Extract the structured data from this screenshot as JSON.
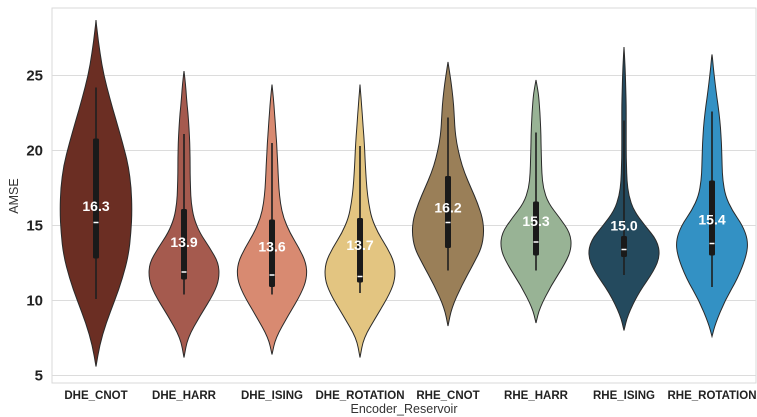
{
  "chart_data": {
    "type": "violin",
    "title": "",
    "xlabel": "Encoder_Reservoir",
    "ylabel": "AMSE",
    "ylim": [
      4.5,
      29.5
    ],
    "yticks": [
      5,
      10,
      15,
      20,
      25
    ],
    "grid": true,
    "categories": [
      "DHE_CNOT",
      "DHE_HARR",
      "DHE_ISING",
      "DHE_ROTATION",
      "RHE_CNOT",
      "RHE_HARR",
      "RHE_ISING",
      "RHE_ROTATION"
    ],
    "means": [
      "16.3",
      "13.9",
      "13.6",
      "13.7",
      "16.2",
      "15.3",
      "15.0",
      "15.4"
    ],
    "colors": [
      "#6b2e23",
      "#a55a4e",
      "#d88a71",
      "#e3c581",
      "#9a7f58",
      "#98b395",
      "#244a5e",
      "#3391c4"
    ],
    "violins": [
      {
        "name": "DHE_CNOT",
        "top": 28.7,
        "bottom": 5.6,
        "whisker": [
          10.1,
          24.2
        ],
        "q1": 12.8,
        "median": 15.2,
        "q3": 20.8,
        "profile": [
          [
            5.6,
            0
          ],
          [
            7,
            0.1
          ],
          [
            8.5,
            0.28
          ],
          [
            10,
            0.52
          ],
          [
            11.5,
            0.74
          ],
          [
            13,
            0.9
          ],
          [
            14.5,
            0.97
          ],
          [
            16,
            1.0
          ],
          [
            17.5,
            0.98
          ],
          [
            19,
            0.9
          ],
          [
            20.5,
            0.74
          ],
          [
            22,
            0.56
          ],
          [
            23.5,
            0.38
          ],
          [
            25,
            0.22
          ],
          [
            26.5,
            0.11
          ],
          [
            28,
            0.03
          ],
          [
            28.7,
            0
          ]
        ]
      },
      {
        "name": "DHE_HARR",
        "top": 25.3,
        "bottom": 6.2,
        "whisker": [
          10.4,
          21.1
        ],
        "q1": 11.4,
        "median": 11.9,
        "q3": 16.1,
        "profile": [
          [
            6.2,
            0
          ],
          [
            7.5,
            0.1
          ],
          [
            9,
            0.45
          ],
          [
            10.5,
            0.84
          ],
          [
            11.5,
            0.98
          ],
          [
            12.5,
            0.96
          ],
          [
            13.5,
            0.72
          ],
          [
            14.5,
            0.44
          ],
          [
            15.5,
            0.27
          ],
          [
            16.5,
            0.2
          ],
          [
            17.5,
            0.18
          ],
          [
            18.5,
            0.17
          ],
          [
            19.5,
            0.17
          ],
          [
            20.5,
            0.16
          ],
          [
            21.5,
            0.14
          ],
          [
            22.5,
            0.11
          ],
          [
            23.5,
            0.07
          ],
          [
            24.5,
            0.04
          ],
          [
            25.3,
            0
          ]
        ]
      },
      {
        "name": "DHE_ISING",
        "top": 24.4,
        "bottom": 6.4,
        "whisker": [
          10.4,
          20.5
        ],
        "q1": 10.9,
        "median": 11.7,
        "q3": 15.4,
        "profile": [
          [
            6.4,
            0
          ],
          [
            7.5,
            0.1
          ],
          [
            9,
            0.45
          ],
          [
            10.5,
            0.82
          ],
          [
            11.5,
            0.97
          ],
          [
            12.5,
            0.95
          ],
          [
            13.5,
            0.75
          ],
          [
            14.5,
            0.5
          ],
          [
            15.5,
            0.32
          ],
          [
            16.5,
            0.23
          ],
          [
            17.5,
            0.19
          ],
          [
            18.5,
            0.17
          ],
          [
            19.5,
            0.15
          ],
          [
            20.5,
            0.13
          ],
          [
            21.5,
            0.1
          ],
          [
            22.5,
            0.07
          ],
          [
            23.5,
            0.04
          ],
          [
            24.4,
            0
          ]
        ]
      },
      {
        "name": "DHE_ROTATION",
        "top": 24.4,
        "bottom": 6.2,
        "whisker": [
          10.5,
          20.3
        ],
        "q1": 11.2,
        "median": 11.6,
        "q3": 15.5,
        "profile": [
          [
            6.2,
            0
          ],
          [
            7.5,
            0.1
          ],
          [
            9,
            0.47
          ],
          [
            10.5,
            0.84
          ],
          [
            11.5,
            0.98
          ],
          [
            12.5,
            0.96
          ],
          [
            13.5,
            0.76
          ],
          [
            14.5,
            0.5
          ],
          [
            15.5,
            0.32
          ],
          [
            16.5,
            0.24
          ],
          [
            17.5,
            0.19
          ],
          [
            18.5,
            0.16
          ],
          [
            19.5,
            0.14
          ],
          [
            20.5,
            0.12
          ],
          [
            21.5,
            0.09
          ],
          [
            22.5,
            0.06
          ],
          [
            23.5,
            0.03
          ],
          [
            24.4,
            0
          ]
        ]
      },
      {
        "name": "RHE_CNOT",
        "top": 25.9,
        "bottom": 8.3,
        "whisker": [
          12.0,
          22.2
        ],
        "q1": 13.5,
        "median": 15.2,
        "q3": 18.3,
        "profile": [
          [
            8.3,
            0
          ],
          [
            9.5,
            0.1
          ],
          [
            11,
            0.38
          ],
          [
            12.5,
            0.72
          ],
          [
            13.5,
            0.93
          ],
          [
            14.5,
            1.0
          ],
          [
            15.5,
            0.96
          ],
          [
            16.5,
            0.82
          ],
          [
            17.5,
            0.64
          ],
          [
            18.5,
            0.46
          ],
          [
            19.5,
            0.33
          ],
          [
            20.5,
            0.24
          ],
          [
            21.5,
            0.19
          ],
          [
            22.5,
            0.17
          ],
          [
            23.5,
            0.14
          ],
          [
            24.5,
            0.09
          ],
          [
            25.3,
            0.04
          ],
          [
            25.9,
            0
          ]
        ]
      },
      {
        "name": "RHE_HARR",
        "top": 24.7,
        "bottom": 8.5,
        "whisker": [
          12.0,
          21.2
        ],
        "q1": 13.0,
        "median": 13.9,
        "q3": 16.6,
        "profile": [
          [
            8.5,
            0
          ],
          [
            9.5,
            0.1
          ],
          [
            11,
            0.42
          ],
          [
            12.5,
            0.82
          ],
          [
            13.5,
            0.99
          ],
          [
            14.5,
            0.95
          ],
          [
            15.5,
            0.66
          ],
          [
            16.5,
            0.34
          ],
          [
            17.5,
            0.2
          ],
          [
            18.5,
            0.16
          ],
          [
            19.5,
            0.15
          ],
          [
            20.5,
            0.14
          ],
          [
            21.5,
            0.13
          ],
          [
            22.5,
            0.11
          ],
          [
            23.5,
            0.08
          ],
          [
            24.2,
            0.04
          ],
          [
            24.7,
            0
          ]
        ]
      },
      {
        "name": "RHE_ISING",
        "top": 26.9,
        "bottom": 8.0,
        "whisker": [
          11.7,
          22.0
        ],
        "q1": 12.9,
        "median": 13.4,
        "q3": 14.3,
        "profile": [
          [
            8,
            0
          ],
          [
            9,
            0.1
          ],
          [
            10.5,
            0.4
          ],
          [
            12,
            0.84
          ],
          [
            13,
            1.0
          ],
          [
            14,
            0.92
          ],
          [
            15,
            0.58
          ],
          [
            16,
            0.27
          ],
          [
            17,
            0.13
          ],
          [
            18,
            0.08
          ],
          [
            19,
            0.07
          ],
          [
            20,
            0.06
          ],
          [
            21,
            0.06
          ],
          [
            22,
            0.06
          ],
          [
            23,
            0.06
          ],
          [
            24,
            0.05
          ],
          [
            25,
            0.04
          ],
          [
            26,
            0.02
          ],
          [
            26.9,
            0
          ]
        ]
      },
      {
        "name": "RHE_ROTATION",
        "top": 26.4,
        "bottom": 7.6,
        "whisker": [
          10.9,
          22.6
        ],
        "q1": 13.0,
        "median": 13.8,
        "q3": 18.0,
        "profile": [
          [
            7.6,
            0
          ],
          [
            8.5,
            0.1
          ],
          [
            10,
            0.36
          ],
          [
            11.5,
            0.72
          ],
          [
            13,
            0.96
          ],
          [
            14,
            1.0
          ],
          [
            15,
            0.85
          ],
          [
            16,
            0.56
          ],
          [
            17,
            0.37
          ],
          [
            18,
            0.3
          ],
          [
            19,
            0.28
          ],
          [
            20,
            0.27
          ],
          [
            21,
            0.25
          ],
          [
            22,
            0.22
          ],
          [
            23,
            0.17
          ],
          [
            24,
            0.11
          ],
          [
            25,
            0.06
          ],
          [
            26,
            0.02
          ],
          [
            26.4,
            0
          ]
        ]
      }
    ]
  }
}
